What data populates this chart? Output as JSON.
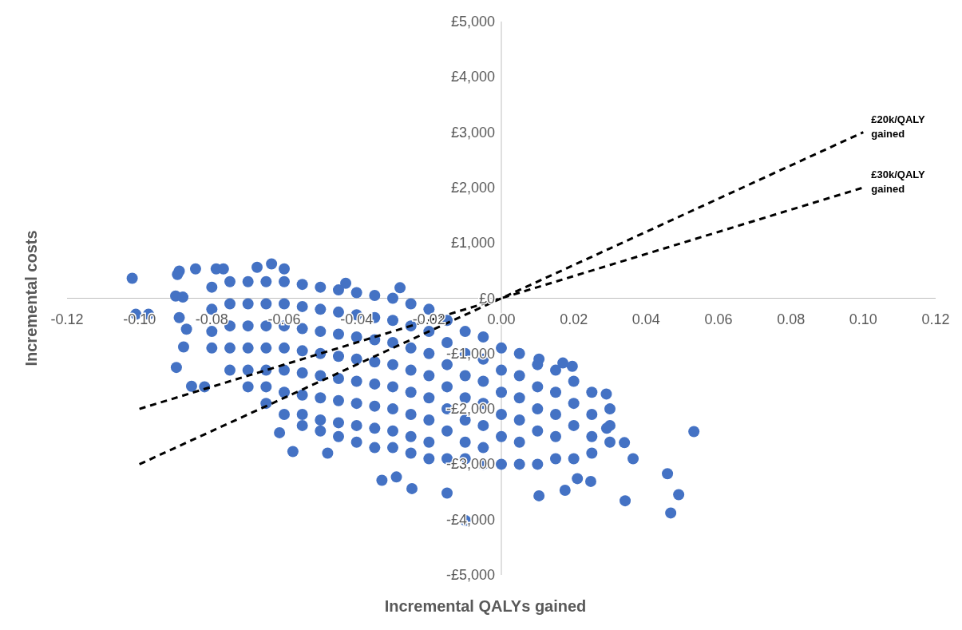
{
  "chart_data": {
    "type": "scatter",
    "xlabel": "Incremental QALYs gained",
    "ylabel": "Incremental costs",
    "xlim": [
      -0.12,
      0.12
    ],
    "ylim": [
      -5000,
      5000
    ],
    "xticks": [
      {
        "value": -0.12,
        "label": "-0.12"
      },
      {
        "value": -0.1,
        "label": "-0.10"
      },
      {
        "value": -0.08,
        "label": "-0.08"
      },
      {
        "value": -0.06,
        "label": "-0.06"
      },
      {
        "value": -0.04,
        "label": "-0.04"
      },
      {
        "value": -0.02,
        "label": "-0.02"
      },
      {
        "value": 0,
        "label": "0.00"
      },
      {
        "value": 0.02,
        "label": "0.02"
      },
      {
        "value": 0.04,
        "label": "0.04"
      },
      {
        "value": 0.06,
        "label": "0.06"
      },
      {
        "value": 0.08,
        "label": "0.08"
      },
      {
        "value": 0.1,
        "label": "0.10"
      },
      {
        "value": 0.12,
        "label": "0.12"
      }
    ],
    "yticks": [
      {
        "value": -5000,
        "label": "-£5,000"
      },
      {
        "value": -4000,
        "label": "-£4,000"
      },
      {
        "value": -3000,
        "label": "-£3,000"
      },
      {
        "value": -2000,
        "label": "-£2,000"
      },
      {
        "value": -1000,
        "label": "-£1,000"
      },
      {
        "value": 0,
        "label": "£0"
      },
      {
        "value": 1000,
        "label": "£1,000"
      },
      {
        "value": 2000,
        "label": "£2,000"
      },
      {
        "value": 3000,
        "label": "£3,000"
      },
      {
        "value": 4000,
        "label": "£4,000"
      },
      {
        "value": 5000,
        "label": "£5,000"
      }
    ],
    "series": [
      {
        "marker": "circle",
        "color": "#4472c4",
        "x": [
          -0.102,
          -0.101,
          -0.0975,
          -0.089,
          -0.0895,
          -0.0845,
          -0.09,
          -0.088,
          -0.089,
          -0.087,
          -0.0878,
          -0.0898,
          -0.0856,
          -0.082,
          -0.0788,
          -0.0768,
          -0.0675,
          -0.0635,
          -0.06,
          -0.043,
          -0.028,
          0.0532,
          0.0459,
          0.049,
          0.0468,
          0.0342,
          0.0291,
          0.0364,
          0.034,
          0.029,
          0.0196,
          0.017,
          0.0104,
          0.0104,
          0.0176,
          0.021,
          0.0247,
          -0.0099,
          -0.015,
          -0.029,
          -0.033,
          -0.0247,
          -0.0576,
          -0.048,
          -0.0613,
          -0.08,
          -0.08,
          -0.08,
          -0.08,
          -0.075,
          -0.075,
          -0.075,
          -0.075,
          -0.075,
          -0.07,
          -0.07,
          -0.07,
          -0.07,
          -0.07,
          -0.07,
          -0.065,
          -0.065,
          -0.065,
          -0.065,
          -0.065,
          -0.065,
          -0.065,
          -0.06,
          -0.06,
          -0.06,
          -0.06,
          -0.06,
          -0.06,
          -0.06,
          -0.055,
          -0.055,
          -0.055,
          -0.055,
          -0.055,
          -0.055,
          -0.055,
          -0.055,
          -0.05,
          -0.05,
          -0.05,
          -0.05,
          -0.05,
          -0.05,
          -0.05,
          -0.05,
          -0.045,
          -0.045,
          -0.045,
          -0.045,
          -0.045,
          -0.045,
          -0.045,
          -0.045,
          -0.04,
          -0.04,
          -0.04,
          -0.04,
          -0.04,
          -0.04,
          -0.04,
          -0.04,
          -0.035,
          -0.035,
          -0.035,
          -0.035,
          -0.035,
          -0.035,
          -0.035,
          -0.035,
          -0.03,
          -0.03,
          -0.03,
          -0.03,
          -0.03,
          -0.03,
          -0.03,
          -0.03,
          -0.025,
          -0.025,
          -0.025,
          -0.025,
          -0.025,
          -0.025,
          -0.025,
          -0.025,
          -0.02,
          -0.02,
          -0.02,
          -0.02,
          -0.02,
          -0.02,
          -0.02,
          -0.02,
          -0.015,
          -0.015,
          -0.015,
          -0.015,
          -0.015,
          -0.015,
          -0.015,
          -0.01,
          -0.01,
          -0.01,
          -0.01,
          -0.01,
          -0.01,
          -0.01,
          -0.005,
          -0.005,
          -0.005,
          -0.005,
          -0.005,
          -0.005,
          -0.005,
          0,
          0,
          0,
          0,
          0,
          0,
          0.005,
          0.005,
          0.005,
          0.005,
          0.005,
          0.005,
          0.01,
          0.01,
          0.01,
          0.01,
          0.01,
          0.015,
          0.015,
          0.015,
          0.015,
          0.015,
          0.02,
          0.02,
          0.02,
          0.02,
          0.025,
          0.025,
          0.025,
          0.025,
          0.03,
          0.03,
          0.03
        ],
        "values": [
          360,
          -290,
          -290,
          490,
          430,
          530,
          40,
          20,
          -350,
          -560,
          -880,
          -1250,
          -1590,
          -1600,
          530,
          530,
          560,
          620,
          530,
          270,
          190,
          -2410,
          -3170,
          -3550,
          -3880,
          -3660,
          -2350,
          -2900,
          -2610,
          -1730,
          -1230,
          -1170,
          -1100,
          -3570,
          -3470,
          -3260,
          -3310,
          -4020,
          -3520,
          -3230,
          -3290,
          -3440,
          -2770,
          -2800,
          -2430,
          200,
          -200,
          -600,
          -900,
          300,
          -100,
          -500,
          -900,
          -1300,
          300,
          -100,
          -500,
          -900,
          -1300,
          -1600,
          300,
          -100,
          -500,
          -900,
          -1300,
          -1600,
          -1900,
          300,
          -100,
          -500,
          -900,
          -1300,
          -1700,
          -2100,
          250,
          -150,
          -550,
          -950,
          -1350,
          -1750,
          -2100,
          -2300,
          200,
          -200,
          -600,
          -1000,
          -1400,
          -1800,
          -2200,
          -2400,
          150,
          -250,
          -650,
          -1050,
          -1450,
          -1850,
          -2250,
          -2500,
          100,
          -300,
          -700,
          -1100,
          -1500,
          -1900,
          -2300,
          -2600,
          50,
          -350,
          -750,
          -1150,
          -1550,
          -1950,
          -2350,
          -2700,
          0,
          -400,
          -800,
          -1200,
          -1600,
          -2000,
          -2400,
          -2700,
          -100,
          -500,
          -900,
          -1300,
          -1700,
          -2100,
          -2500,
          -2800,
          -200,
          -600,
          -1000,
          -1400,
          -1800,
          -2200,
          -2600,
          -2900,
          -400,
          -800,
          -1200,
          -1600,
          -2000,
          -2400,
          -2900,
          -600,
          -1000,
          -1400,
          -1800,
          -2200,
          -2600,
          -2900,
          -700,
          -1100,
          -1500,
          -1900,
          -2300,
          -2700,
          -3000,
          -900,
          -1300,
          -1700,
          -2100,
          -2500,
          -3000,
          -1000,
          -1400,
          -1800,
          -2200,
          -2600,
          -3000,
          -1200,
          -1600,
          -2000,
          -2400,
          -3000,
          -1300,
          -1700,
          -2100,
          -2500,
          -2900,
          -1500,
          -1900,
          -2300,
          -2900,
          -1700,
          -2100,
          -2500,
          -2800,
          -2000,
          -2300,
          -2600
        ]
      },
      {
        "type": "line",
        "color": "#000000",
        "line_style": "dashed",
        "x": [
          -0.1,
          0.1
        ],
        "values": [
          -3000,
          3000
        ]
      },
      {
        "type": "line",
        "color": "#000000",
        "line_style": "dashed",
        "x": [
          -0.1,
          0.1
        ],
        "values": [
          -2000,
          2000
        ]
      }
    ],
    "annotations": [
      {
        "text": "£20k/QALY gained",
        "x": 0.1,
        "y": 3000
      },
      {
        "text": "£30k/QALY gained",
        "x": 0.1,
        "y": 2000
      }
    ]
  }
}
